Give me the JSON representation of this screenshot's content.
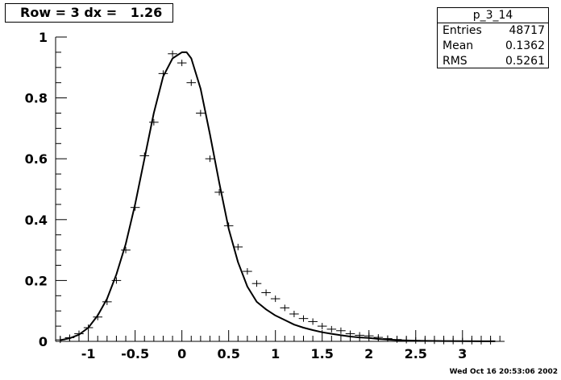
{
  "title": "Row = 3 dx =   1.26",
  "stats": {
    "name": "p_3_14",
    "rows": [
      {
        "label": "Entries",
        "value": "48717"
      },
      {
        "label": "Mean",
        "value": "0.1362"
      },
      {
        "label": "RMS",
        "value": "0.5261"
      }
    ]
  },
  "timestamp": "Wed Oct 16 20:53:06 2002",
  "chart_data": {
    "type": "scatter",
    "title": "Row = 3 dx =   1.26",
    "xlim": [
      -1.35,
      3.45
    ],
    "ylim": [
      0,
      1
    ],
    "x_ticks": [
      -1,
      -0.5,
      0,
      0.5,
      1,
      1.5,
      2,
      2.5,
      3
    ],
    "x_tick_labels": [
      "-1",
      "-0.5",
      "0",
      "0.5",
      "1",
      "1.5",
      "2",
      "2.5",
      "3"
    ],
    "y_ticks": [
      0,
      0.2,
      0.4,
      0.6,
      0.8,
      1
    ],
    "y_tick_labels": [
      "0",
      "0.2",
      "0.4",
      "0.6",
      "0.8",
      "1"
    ],
    "grid": false,
    "series": [
      {
        "kind": "points",
        "marker": "cross",
        "x": [
          -1.3,
          -1.2,
          -1.1,
          -1.0,
          -0.9,
          -0.8,
          -0.7,
          -0.6,
          -0.5,
          -0.4,
          -0.3,
          -0.2,
          -0.1,
          0.0,
          0.1,
          0.2,
          0.3,
          0.4,
          0.5,
          0.6,
          0.7,
          0.8,
          0.9,
          1.0,
          1.1,
          1.2,
          1.3,
          1.4,
          1.5,
          1.6,
          1.7,
          1.8,
          1.9,
          2.0,
          2.1,
          2.2,
          2.3,
          2.4,
          2.5,
          2.6,
          2.7,
          2.8,
          2.9,
          3.0,
          3.1,
          3.2,
          3.3
        ],
        "y": [
          0.005,
          0.012,
          0.025,
          0.045,
          0.08,
          0.13,
          0.2,
          0.3,
          0.44,
          0.61,
          0.72,
          0.88,
          0.945,
          0.915,
          0.85,
          0.75,
          0.6,
          0.49,
          0.38,
          0.31,
          0.23,
          0.19,
          0.16,
          0.14,
          0.11,
          0.09,
          0.075,
          0.065,
          0.05,
          0.04,
          0.035,
          0.025,
          0.02,
          0.018,
          0.013,
          0.009,
          0.006,
          0.004,
          0.003,
          0.002,
          0.002,
          0.001,
          0.001,
          0.001,
          0.0005,
          0.0005,
          0.0003
        ]
      },
      {
        "kind": "curve",
        "x": [
          -1.3,
          -1.2,
          -1.1,
          -1.0,
          -0.9,
          -0.8,
          -0.7,
          -0.6,
          -0.5,
          -0.4,
          -0.3,
          -0.2,
          -0.1,
          0.0,
          0.05,
          0.1,
          0.2,
          0.3,
          0.4,
          0.5,
          0.6,
          0.7,
          0.8,
          0.9,
          1.0,
          1.1,
          1.2,
          1.3,
          1.4,
          1.5,
          1.6,
          1.7,
          1.8,
          1.9,
          2.0,
          2.1,
          2.2,
          2.3,
          2.4,
          2.5,
          2.6,
          2.8,
          3.0,
          3.2,
          3.35
        ],
        "y": [
          0.004,
          0.01,
          0.022,
          0.045,
          0.085,
          0.14,
          0.22,
          0.32,
          0.45,
          0.6,
          0.75,
          0.87,
          0.93,
          0.95,
          0.95,
          0.93,
          0.83,
          0.68,
          0.52,
          0.37,
          0.26,
          0.18,
          0.13,
          0.105,
          0.085,
          0.07,
          0.055,
          0.045,
          0.037,
          0.03,
          0.025,
          0.02,
          0.016,
          0.013,
          0.011,
          0.008,
          0.006,
          0.004,
          0.003,
          0.002,
          0.0015,
          0.001,
          0.0006,
          0.0003,
          0.0002
        ]
      }
    ]
  }
}
